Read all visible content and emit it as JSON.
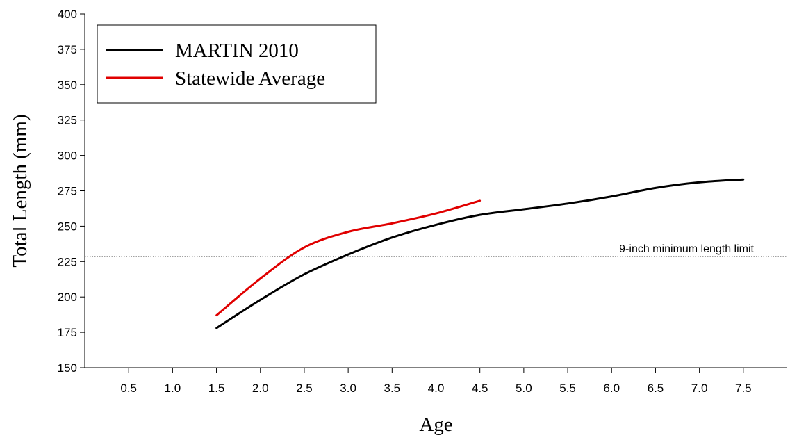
{
  "chart_data": {
    "type": "line",
    "title": "",
    "xlabel": "Age",
    "ylabel": "Total Length (mm)",
    "xlim": [
      0,
      8
    ],
    "ylim": [
      150,
      400
    ],
    "x_ticks": [
      "0.5",
      "1.0",
      "1.5",
      "2.0",
      "2.5",
      "3.0",
      "3.5",
      "4.0",
      "4.5",
      "5.0",
      "5.5",
      "6.0",
      "6.5",
      "7.0",
      "7.5"
    ],
    "y_ticks": [
      "150",
      "175",
      "200",
      "225",
      "250",
      "275",
      "300",
      "325",
      "350",
      "375",
      "400"
    ],
    "grid": false,
    "legend_position": "top-left",
    "series": [
      {
        "name": "MARTIN 2010",
        "color": "#000000",
        "x": [
          1.5,
          2.0,
          2.5,
          3.0,
          3.5,
          4.0,
          4.5,
          5.0,
          5.5,
          6.0,
          6.5,
          7.0,
          7.5
        ],
        "y": [
          178,
          198,
          216,
          230,
          242,
          251,
          258,
          262,
          266,
          271,
          277,
          281,
          283
        ]
      },
      {
        "name": "Statewide Average",
        "color": "#e00000",
        "x": [
          1.5,
          2.0,
          2.5,
          3.0,
          3.5,
          4.0,
          4.5
        ],
        "y": [
          187,
          213,
          235,
          246,
          252,
          259,
          268
        ]
      }
    ],
    "reference_line": {
      "y": 228.6,
      "label": "9-inch minimum length limit",
      "style": "dotted"
    }
  }
}
